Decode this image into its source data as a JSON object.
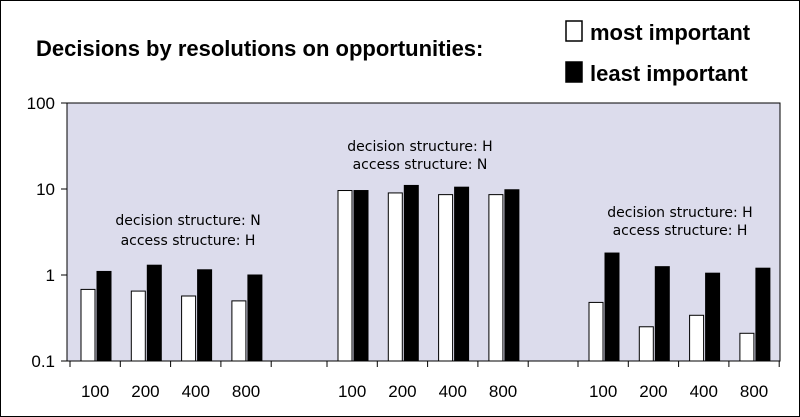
{
  "chart_data": {
    "type": "bar",
    "title": "Decisions by resolutions on opportunities:",
    "y_scale": "log",
    "ylim": [
      0.1,
      100
    ],
    "y_ticks": [
      "0.1",
      "1",
      "10",
      "100"
    ],
    "y_tick_values": [
      0.1,
      1,
      10,
      100
    ],
    "grid": false,
    "legend_position": "top-right",
    "colors": {
      "most important": "#ffffff",
      "least important": "#000000",
      "plot_background": "#dcdcec"
    },
    "series": [
      {
        "name": "most important"
      },
      {
        "name": "least important"
      }
    ],
    "groups": [
      {
        "annotation": [
          "decision structure: N",
          "access structure: H"
        ],
        "categories": [
          "100",
          "200",
          "400",
          "800"
        ],
        "values": {
          "most important": [
            0.68,
            0.65,
            0.57,
            0.5
          ],
          "least important": [
            1.1,
            1.3,
            1.15,
            1.0
          ]
        }
      },
      {
        "annotation": [
          "decision structure: H",
          "access structure: N"
        ],
        "categories": [
          "100",
          "200",
          "400",
          "800"
        ],
        "values": {
          "most important": [
            9.6,
            9.0,
            8.6,
            8.6
          ],
          "least important": [
            9.6,
            11.0,
            10.5,
            9.8
          ]
        }
      },
      {
        "annotation": [
          "decision structure: H",
          "access structure: H"
        ],
        "categories": [
          "100",
          "200",
          "400",
          "800"
        ],
        "values": {
          "most important": [
            0.48,
            0.25,
            0.34,
            0.21
          ],
          "least important": [
            1.8,
            1.25,
            1.05,
            1.2
          ]
        }
      }
    ]
  }
}
